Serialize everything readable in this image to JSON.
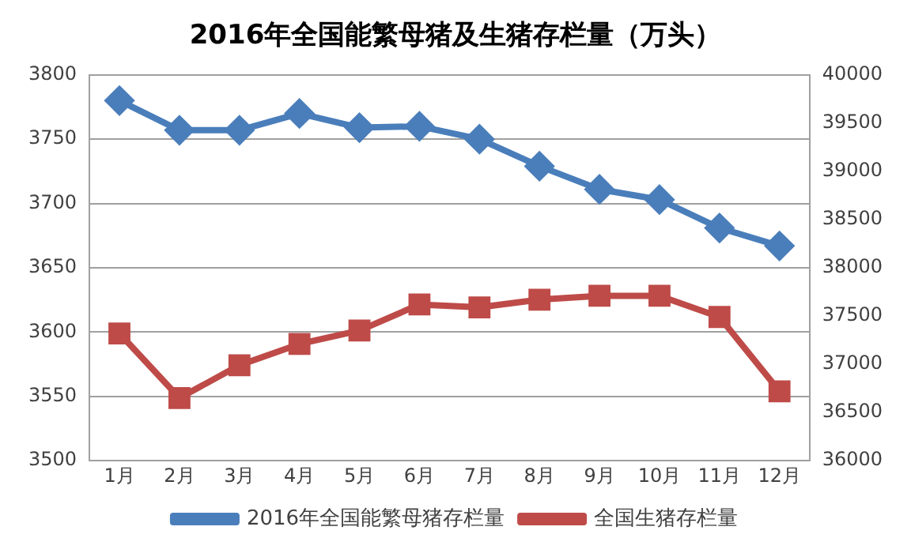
{
  "chart_data": {
    "type": "line",
    "title": "2016年全国能繁母猪及生猪存栏量（万头）",
    "categories": [
      "1月",
      "2月",
      "3月",
      "4月",
      "5月",
      "6月",
      "7月",
      "8月",
      "9月",
      "10月",
      "11月",
      "12月"
    ],
    "series": [
      {
        "name": "2016年全国能繁母猪存栏量",
        "color": "#4a7ebb",
        "marker": "diamond",
        "values": [
          3780,
          3757,
          3757,
          3770,
          3759,
          3760,
          3750,
          3729,
          3711,
          3703,
          3681,
          3667
        ]
      },
      {
        "name": "全国生猪存栏量",
        "color": "#be4b48",
        "marker": "square",
        "axis": "y2",
        "values": [
          37320,
          36650,
          36990,
          37210,
          37350,
          37620,
          37590,
          37670,
          37710,
          37710,
          37490,
          36720
        ]
      }
    ],
    "ylim": [
      3500,
      3800
    ],
    "yticks": [
      3500,
      3550,
      3600,
      3650,
      3700,
      3750,
      3800
    ],
    "y2lim": [
      36000,
      40000
    ],
    "y2ticks": [
      36000,
      36500,
      37000,
      37500,
      38000,
      38500,
      39000,
      39500,
      40000
    ],
    "grid": "y",
    "legend": "bottom"
  }
}
